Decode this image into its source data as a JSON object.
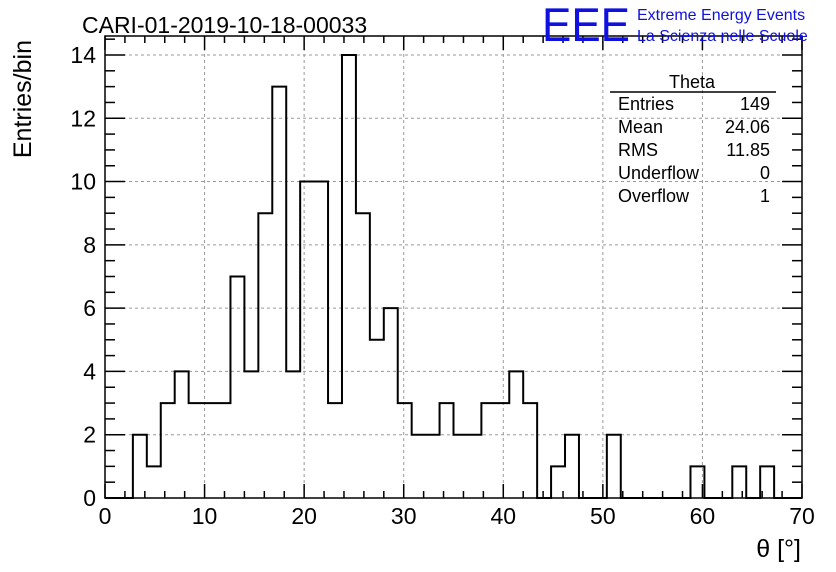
{
  "chart_data": {
    "type": "bar",
    "title": "CARI-01-2019-10-18-00033",
    "xlabel": "θ [°]",
    "ylabel": "Entries/bin",
    "xlim": [
      0,
      70
    ],
    "ylim": [
      0,
      14.6
    ],
    "x_ticks": [
      "0",
      "10",
      "20",
      "30",
      "40",
      "50",
      "60",
      "70"
    ],
    "y_ticks": [
      "0",
      "2",
      "4",
      "6",
      "8",
      "10",
      "12",
      "14"
    ],
    "grid": true,
    "bin_width": 1.4,
    "bin_start": 0,
    "values": [
      0,
      0,
      2,
      1,
      3,
      4,
      3,
      3,
      3,
      7,
      4,
      9,
      13,
      4,
      10,
      10,
      3,
      14,
      9,
      5,
      6,
      3,
      2,
      2,
      3,
      2,
      2,
      3,
      3,
      4,
      3,
      0,
      1,
      2,
      0,
      0,
      2,
      0,
      0,
      0,
      0,
      0,
      1,
      0,
      0,
      1,
      0,
      1,
      0,
      0
    ],
    "stats_box": {
      "title": "Theta",
      "rows": [
        {
          "label": "Entries",
          "value": "149"
        },
        {
          "label": "Mean",
          "value": "24.06"
        },
        {
          "label": "RMS",
          "value": "11.85"
        },
        {
          "label": "Underflow",
          "value": "0"
        },
        {
          "label": "Overflow",
          "value": "1"
        }
      ]
    },
    "logo": {
      "mark": "EEE",
      "line1": "Extreme Energy Events",
      "line2": "La Scienza nelle Scuole",
      "color": "#1010e0"
    }
  }
}
